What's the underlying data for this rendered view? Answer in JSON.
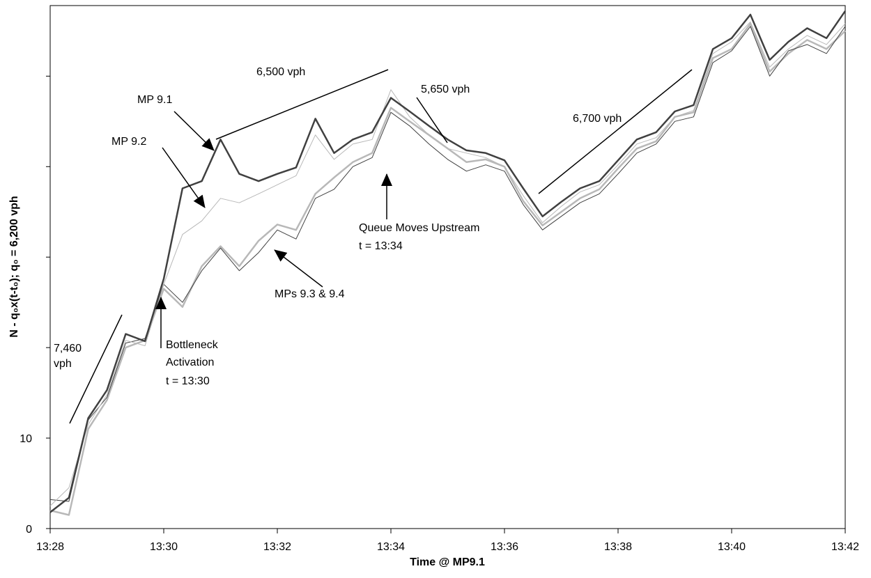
{
  "chart_data": {
    "type": "line",
    "xlabel": "Time @ MP9.1",
    "ylabel": "N - q₀x(t-t₀); q₀ = 6,200 vph",
    "x": [
      808,
      808.33,
      808.67,
      809,
      809.33,
      809.67,
      810,
      810.33,
      810.67,
      811,
      811.33,
      811.67,
      812,
      812.33,
      812.67,
      813,
      813.33,
      813.67,
      814,
      814.33,
      814.67,
      815,
      815.33,
      815.67,
      816,
      816.33,
      816.67,
      817,
      817.33,
      817.67,
      818,
      818.33,
      818.67,
      819,
      819.33,
      819.67,
      820,
      820.33,
      820.67,
      821,
      821.33,
      821.67,
      822
    ],
    "series": [
      {
        "name": "MP 9.1",
        "color": "#404040",
        "values": [
          1.8,
          3.4,
          12.2,
          15.3,
          21.5,
          20.7,
          27.6,
          37.6,
          38.4,
          43,
          39.2,
          38.4,
          39.2,
          39.9,
          45.3,
          41.5,
          43,
          43.8,
          47.6,
          46.1,
          44.5,
          43,
          41.8,
          41.5,
          40.7,
          37.6,
          34.5,
          36.1,
          37.6,
          38.4,
          40.7,
          43,
          43.8,
          46.1,
          46.8,
          53,
          54.2,
          56.8,
          51.8,
          53.8,
          55.3,
          54.2,
          57.2
        ]
      },
      {
        "name": "MP 9.2",
        "color": "#b8b8b8",
        "values": [
          2.5,
          4.5,
          11.5,
          14.8,
          20.8,
          20.2,
          27,
          32.5,
          34,
          36.5,
          36,
          37,
          38,
          39,
          43.5,
          40.8,
          42.5,
          43,
          48.5,
          45.5,
          43.5,
          42,
          41.5,
          41,
          40,
          36.8,
          33.8,
          35.6,
          37.2,
          38,
          40.2,
          42.5,
          43.2,
          45.5,
          46.2,
          52.5,
          53.8,
          56,
          51,
          53,
          54.5,
          53.5,
          55.8
        ]
      },
      {
        "color": "#b8b8b8",
        "values": [
          2,
          1.5,
          11,
          14.2,
          20,
          20.8,
          26.5,
          24.5,
          29,
          31.2,
          29,
          31.8,
          33.6,
          33,
          37,
          38.8,
          40.5,
          41.5,
          46.5,
          45,
          43.5,
          42,
          40.5,
          40.8,
          40,
          36.2,
          33.5,
          35,
          36.5,
          37.5,
          39.8,
          42,
          42.8,
          45.5,
          46,
          52,
          53,
          55.8,
          50.5,
          52.5,
          54,
          53,
          55
        ]
      },
      {
        "color": "#404040",
        "values": [
          3.2,
          3,
          12,
          14.5,
          20.5,
          21,
          27,
          25,
          28.5,
          31,
          28.5,
          30.5,
          33,
          32,
          36.5,
          37.5,
          40,
          41,
          46,
          44.5,
          42.5,
          40.8,
          39.5,
          40.2,
          39.5,
          35.8,
          33,
          34.5,
          36,
          37,
          39.2,
          41.5,
          42.5,
          45,
          45.5,
          51.5,
          52.8,
          55.5,
          50,
          52.8,
          53.5,
          52.5,
          55.5
        ]
      }
    ],
    "xlim": [
      808,
      822
    ],
    "xticks": [
      {
        "value": 808,
        "label": "13:28"
      },
      {
        "value": 810,
        "label": "13:30"
      },
      {
        "value": 812,
        "label": "13:32"
      },
      {
        "value": 814,
        "label": "13:34"
      },
      {
        "value": 816,
        "label": "13:36"
      },
      {
        "value": 818,
        "label": "13:38"
      },
      {
        "value": 820,
        "label": "13:40"
      },
      {
        "value": 822,
        "label": "13:42"
      }
    ],
    "ylim": [
      0,
      57.8
    ],
    "yticks": [
      0,
      10
    ],
    "y_unlabeled_ticks": [
      20,
      30,
      40,
      50
    ],
    "annotations": [
      "7,460",
      "vph",
      "6,500 vph",
      "5,650 vph",
      "6,700 vph",
      "MPs 9.3 & 9.4",
      "Queue Moves Upstream",
      "t = 13:34",
      "Bottleneck",
      "Activation",
      "t = 13:30"
    ]
  }
}
